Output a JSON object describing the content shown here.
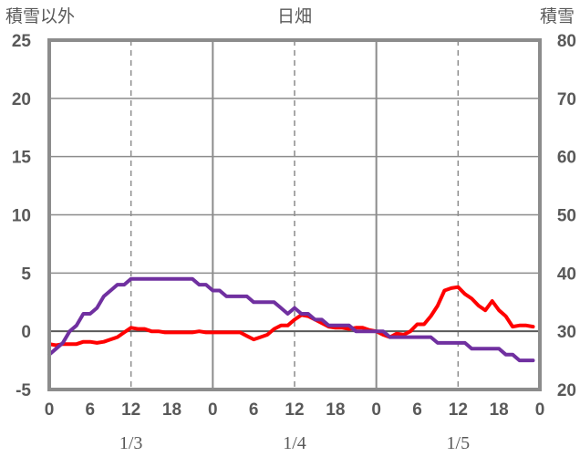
{
  "chart_data": {
    "type": "line",
    "title": "日畑",
    "ylabel_left": "積雪以外",
    "ylabel_right": "積雪",
    "yleft_range": [
      -5,
      25
    ],
    "yleft_ticks": [
      -5,
      0,
      5,
      10,
      15,
      20,
      25
    ],
    "yright_range": [
      20,
      80
    ],
    "yright_ticks": [
      20,
      30,
      40,
      50,
      60,
      70,
      80
    ],
    "x_range_hours": [
      0,
      72
    ],
    "x_tick_labels": [
      "0",
      "6",
      "12",
      "18",
      "0",
      "6",
      "12",
      "18",
      "0",
      "6",
      "12",
      "18",
      "0"
    ],
    "date_labels": [
      "1/3",
      "1/4",
      "1/5"
    ],
    "grid": "dashed vertical at 12h, solid vertical at day boundaries, horizontal lines at each left tick",
    "series": [
      {
        "name": "",
        "axis": "left",
        "color": "#ff0000",
        "x": [
          0,
          1,
          2,
          3,
          4,
          5,
          6,
          7,
          8,
          9,
          10,
          11,
          12,
          13,
          14,
          15,
          16,
          17,
          18,
          19,
          20,
          21,
          22,
          23,
          24,
          25,
          26,
          27,
          28,
          29,
          30,
          31,
          32,
          33,
          34,
          35,
          36,
          37,
          38,
          39,
          40,
          41,
          42,
          43,
          44,
          45,
          46,
          47,
          48,
          49,
          50,
          51,
          52,
          53,
          54,
          55,
          56,
          57,
          58,
          59,
          60,
          61,
          62,
          63,
          64,
          65,
          66,
          67,
          68,
          69,
          70,
          71
        ],
        "values": [
          -1.1,
          -1.2,
          -1.1,
          -1.1,
          -1.1,
          -0.9,
          -0.9,
          -1.0,
          -0.9,
          -0.7,
          -0.5,
          -0.1,
          0.3,
          0.2,
          0.2,
          0.0,
          0.0,
          -0.1,
          -0.1,
          -0.1,
          -0.1,
          -0.1,
          0.0,
          -0.1,
          -0.1,
          -0.1,
          -0.1,
          -0.1,
          -0.1,
          -0.4,
          -0.7,
          -0.5,
          -0.3,
          0.2,
          0.5,
          0.5,
          1.0,
          1.4,
          1.3,
          1.0,
          0.7,
          0.4,
          0.3,
          0.3,
          0.2,
          0.3,
          0.3,
          0.1,
          0.0,
          -0.3,
          -0.5,
          -0.2,
          -0.3,
          0.0,
          0.6,
          0.6,
          1.3,
          2.2,
          3.5,
          3.7,
          3.8,
          3.2,
          2.8,
          2.2,
          1.8,
          2.6,
          1.8,
          1.3,
          0.4,
          0.5,
          0.5,
          0.4
        ]
      },
      {
        "name": "",
        "axis": "right",
        "color": "#7030a0",
        "x": [
          0,
          1,
          2,
          3,
          4,
          5,
          6,
          7,
          8,
          9,
          10,
          11,
          12,
          13,
          14,
          15,
          16,
          17,
          18,
          19,
          20,
          21,
          22,
          23,
          24,
          25,
          26,
          27,
          28,
          29,
          30,
          31,
          32,
          33,
          34,
          35,
          36,
          37,
          38,
          39,
          40,
          41,
          42,
          43,
          44,
          45,
          46,
          47,
          48,
          49,
          50,
          51,
          52,
          53,
          54,
          55,
          56,
          57,
          58,
          59,
          60,
          61,
          62,
          63,
          64,
          65,
          66,
          67,
          68,
          69,
          70,
          71
        ],
        "values": [
          26,
          27,
          28,
          30,
          31,
          33,
          33,
          34,
          36,
          37,
          38,
          38,
          39,
          39,
          39,
          39,
          39,
          39,
          39,
          39,
          39,
          39,
          38,
          38,
          37,
          37,
          36,
          36,
          36,
          36,
          35,
          35,
          35,
          35,
          34,
          33,
          34,
          33,
          33,
          32,
          32,
          31,
          31,
          31,
          31,
          30,
          30,
          30,
          30,
          30,
          29,
          29,
          29,
          29,
          29,
          29,
          29,
          28,
          28,
          28,
          28,
          28,
          27,
          27,
          27,
          27,
          27,
          26,
          26,
          25,
          25,
          25
        ]
      }
    ]
  }
}
